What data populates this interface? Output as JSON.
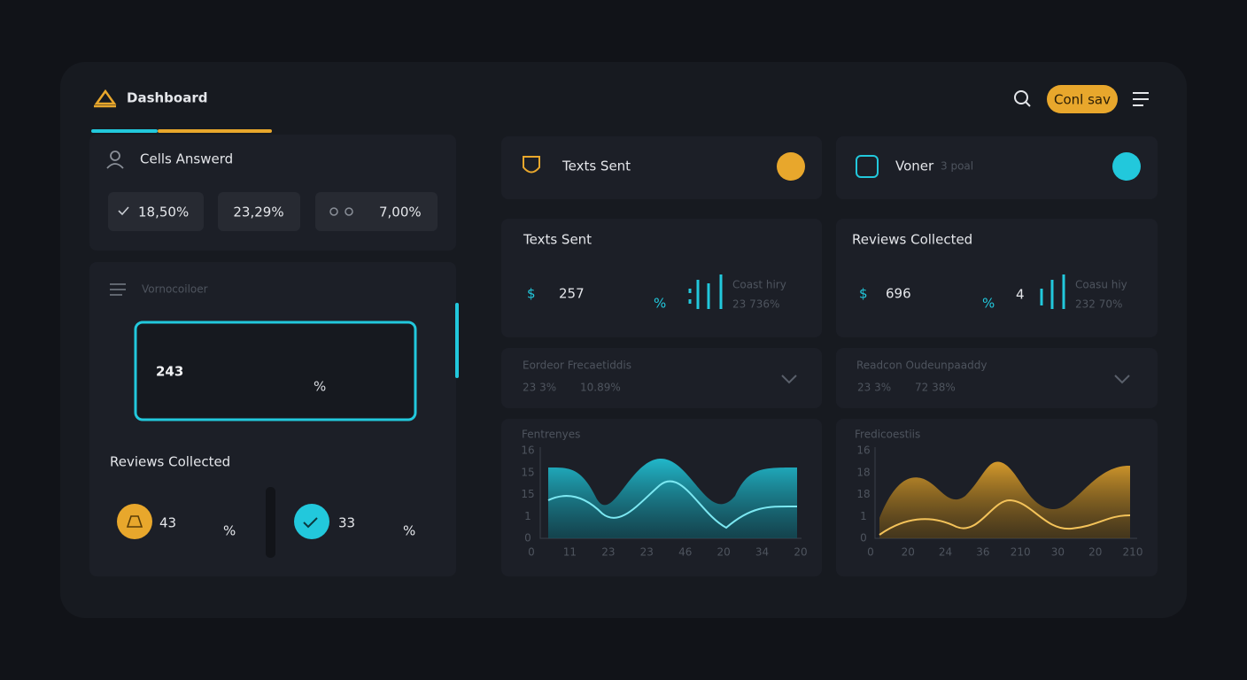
{
  "header": {
    "title": "Dashboard",
    "button": "Conl sav"
  },
  "calls_card": {
    "title": "Cells Answerd",
    "stats": [
      "18,50%",
      "23,29%",
      "7,00%"
    ]
  },
  "main_card": {
    "label": "Vornocoiloer",
    "value": 243,
    "unit": "%",
    "reviews_title": "Reviews Collected",
    "reviews": [
      {
        "value": 43,
        "unit": "%"
      },
      {
        "value": 33,
        "unit": "%"
      }
    ]
  },
  "tiles": [
    {
      "title": "Texts Sent"
    },
    {
      "title": "Voner",
      "subtitle": "3 poal"
    }
  ],
  "metrics": [
    {
      "title": "Texts Sent",
      "currency": "$",
      "value": 257,
      "unit": "%",
      "note": "Coast hiry",
      "note_value": "23 736%"
    },
    {
      "title": "Reviews Collected",
      "currency": "$",
      "value": 696,
      "unit": "%",
      "extra": 4,
      "note": "Coasu hiy",
      "note_value": "232 70%"
    }
  ],
  "dropdowns": [
    {
      "title": "Eordeor Frecaetiddis",
      "values": [
        "23 3%",
        "10.89%"
      ]
    },
    {
      "title": "Readcon Oudeunpaaddy",
      "values": [
        "23 3%",
        "72 38%"
      ]
    }
  ],
  "charts": [
    {
      "title": "Fentrenyes",
      "y_labels": [
        16,
        15,
        15,
        1,
        0
      ],
      "x_labels": [
        0,
        11,
        23,
        23,
        46,
        20,
        34,
        20
      ]
    },
    {
      "title": "Fredicoestiis",
      "y_labels": [
        16,
        18,
        18,
        1,
        0
      ],
      "x_labels": [
        0,
        20,
        24,
        36,
        210,
        30,
        20,
        210
      ]
    }
  ]
}
